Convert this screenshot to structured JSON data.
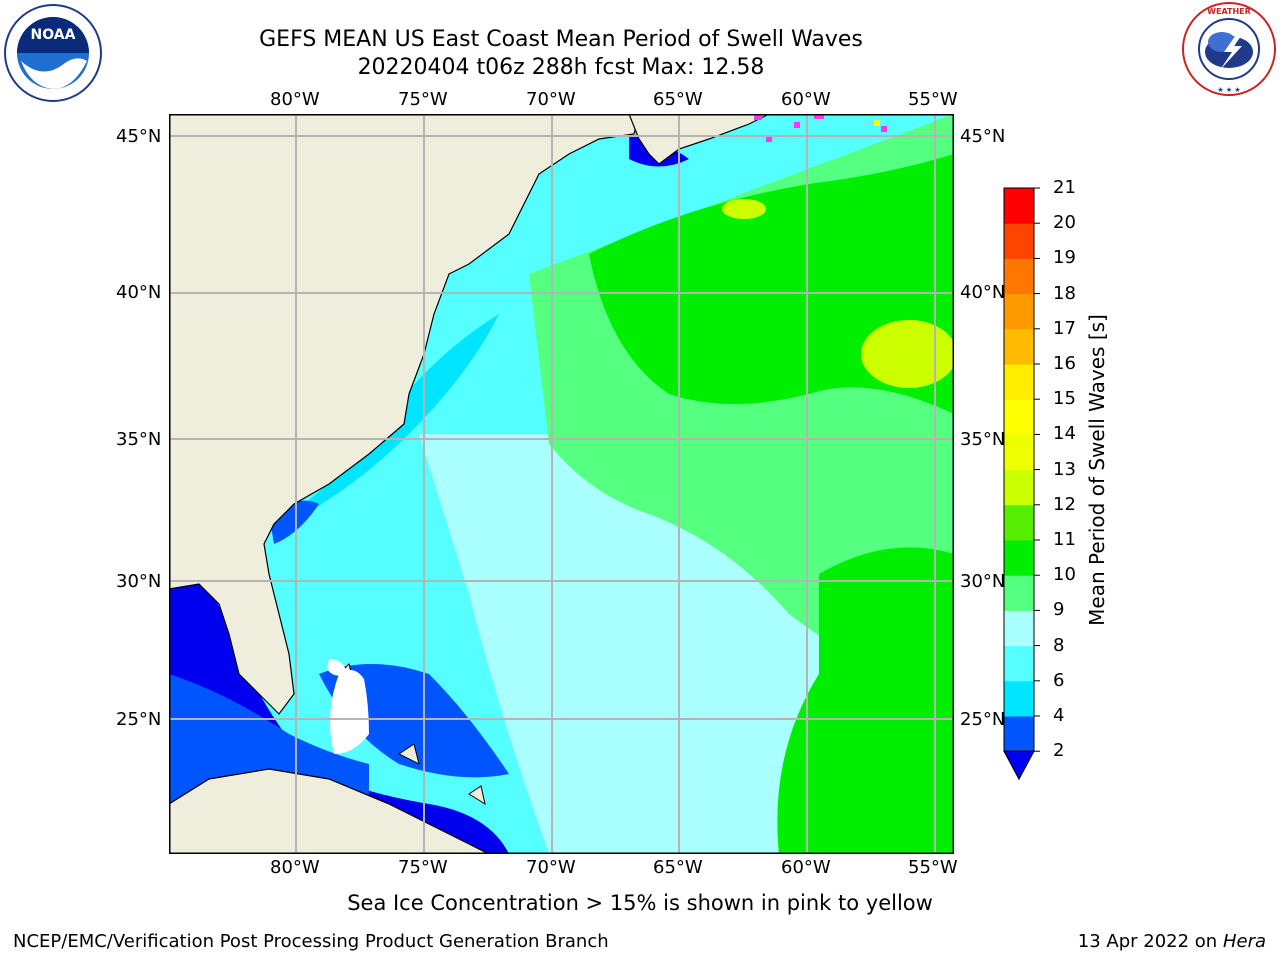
{
  "header": {
    "title_line1": "GEFS MEAN US East Coast Mean Period of Swell Waves",
    "title_line2": "20220404 t06z 288h fcst   Max: 12.58"
  },
  "logos": {
    "left": "NOAA",
    "right": "NATIONAL WEATHER SERVICE"
  },
  "map": {
    "lon_labels": [
      "80°W",
      "75°W",
      "70°W",
      "65°W",
      "60°W",
      "55°W"
    ],
    "lat_labels": [
      "45°N",
      "40°N",
      "35°N",
      "30°N",
      "25°N"
    ],
    "colors": {
      "land": "#efeddc",
      "grid": "#b4b4b4",
      "ice_pink": "#ff33ff",
      "ice_yellow": "#ffff00"
    }
  },
  "colorbar": {
    "label": "Mean Period of Swell Waves [s]",
    "ticks": [
      "2",
      "4",
      "6",
      "8",
      "9",
      "10",
      "11",
      "12",
      "13",
      "14",
      "15",
      "16",
      "17",
      "18",
      "19",
      "20",
      "21"
    ],
    "levels": [
      {
        "from": 2,
        "to": 4,
        "color": "#0055ff"
      },
      {
        "from": 4,
        "to": 6,
        "color": "#00e5ff"
      },
      {
        "from": 6,
        "to": 8,
        "color": "#55ffff"
      },
      {
        "from": 8,
        "to": 9,
        "color": "#aaffff"
      },
      {
        "from": 9,
        "to": 10,
        "color": "#55ff80"
      },
      {
        "from": 10,
        "to": 11,
        "color": "#00ee00"
      },
      {
        "from": 11,
        "to": 12,
        "color": "#55ee00"
      },
      {
        "from": 12,
        "to": 13,
        "color": "#ccff00"
      },
      {
        "from": 13,
        "to": 14,
        "color": "#eeff00"
      },
      {
        "from": 14,
        "to": 15,
        "color": "#ffff00"
      },
      {
        "from": 15,
        "to": 16,
        "color": "#ffee00"
      },
      {
        "from": 16,
        "to": 17,
        "color": "#ffbb00"
      },
      {
        "from": 17,
        "to": 18,
        "color": "#ff9900"
      },
      {
        "from": 18,
        "to": 19,
        "color": "#ff7700"
      },
      {
        "from": 19,
        "to": 20,
        "color": "#ff4400"
      },
      {
        "from": 20,
        "to": 21,
        "color": "#ff0000"
      }
    ],
    "under_color": "#0000ee"
  },
  "footer": {
    "ice_note": "Sea Ice Concentration > 15% is shown in pink to yellow",
    "left": "NCEP/EMC/Verification Post Processing Product Generation Branch",
    "right_date": "13 Apr 2022 on ",
    "right_machine": "Hera"
  }
}
